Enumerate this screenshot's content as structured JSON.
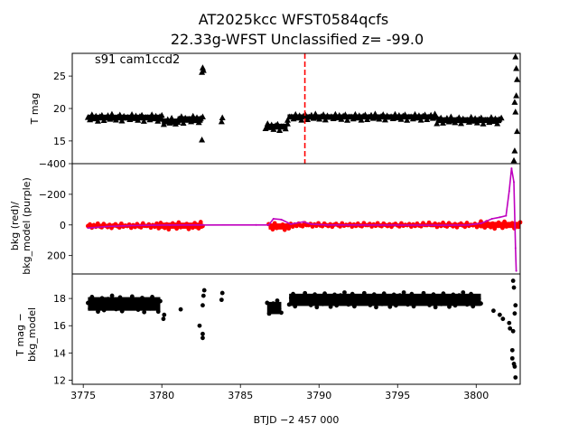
{
  "title": {
    "line1": "AT2025kcc  WFST0584qcfs",
    "line2": "22.33g-WFST Unclassified z= -99.0"
  },
  "annotation": "s91 cam1ccd2",
  "chart_data": [
    {
      "type": "scatter",
      "panel": "top",
      "ylabel": "T mag",
      "ylim": [
        28.5,
        11.5
      ],
      "y_inverted": true,
      "xlim": [
        3774.3,
        3802.8
      ],
      "yticks": [
        15,
        20,
        25
      ],
      "marker": "triangle",
      "color": "#000000",
      "vline": {
        "x": 3789.1,
        "color": "#ff0000",
        "style": "dashed"
      },
      "segments": [
        {
          "x_start": 3775.3,
          "x_end": 3780.0,
          "y_center": 18.6,
          "y_spread": 0.9
        },
        {
          "x_start": 3780.0,
          "x_end": 3781.0,
          "y_center": 18.0,
          "y_spread": 0.9
        },
        {
          "x_start": 3781.0,
          "x_end": 3782.6,
          "y_center": 18.3,
          "y_spread": 1.0
        },
        {
          "x_start": 3786.6,
          "x_end": 3788.0,
          "y_center": 17.2,
          "y_spread": 0.9
        },
        {
          "x_start": 3788.0,
          "x_end": 3797.5,
          "y_center": 18.7,
          "y_spread": 0.8
        },
        {
          "x_start": 3797.5,
          "x_end": 3801.6,
          "y_center": 18.2,
          "y_spread": 0.9
        }
      ],
      "points": [
        {
          "x": 3782.55,
          "y": 15.2
        },
        {
          "x": 3782.55,
          "y": 25.6
        },
        {
          "x": 3782.6,
          "y": 26.3
        },
        {
          "x": 3782.65,
          "y": 25.9
        },
        {
          "x": 3783.8,
          "y": 18.0
        },
        {
          "x": 3783.85,
          "y": 18.6
        },
        {
          "x": 3802.4,
          "y": 12.0
        },
        {
          "x": 3802.45,
          "y": 13.5
        },
        {
          "x": 3802.5,
          "y": 19.5
        },
        {
          "x": 3802.55,
          "y": 22.0
        },
        {
          "x": 3802.6,
          "y": 24.5
        },
        {
          "x": 3802.55,
          "y": 26.2
        },
        {
          "x": 3802.5,
          "y": 28.0
        },
        {
          "x": 3802.45,
          "y": 21.0
        },
        {
          "x": 3802.6,
          "y": 16.5
        }
      ]
    },
    {
      "type": "line",
      "panel": "middle",
      "ylabel": "bkg (red)/ bkg_model (purple)",
      "ylim": [
        -400,
        320
      ],
      "xlim": [
        3774.3,
        3802.8
      ],
      "yticks": [
        -400,
        -200,
        0,
        200
      ],
      "series": [
        {
          "color": "#ff0000",
          "marker": "dot",
          "segments": [
            {
              "x_start": 3775.3,
              "x_end": 3779.8,
              "y_center": 5,
              "y_spread": 25
            },
            {
              "x_start": 3779.8,
              "x_end": 3782.6,
              "y_center": 5,
              "y_spread": 40
            },
            {
              "x_start": 3786.8,
              "x_end": 3788.2,
              "y_center": 10,
              "y_spread": 40
            },
            {
              "x_start": 3788.2,
              "x_end": 3797.0,
              "y_center": 0,
              "y_spread": 20
            },
            {
              "x_start": 3797.0,
              "x_end": 3800.3,
              "y_center": 0,
              "y_spread": 25
            },
            {
              "x_start": 3800.3,
              "x_end": 3802.8,
              "y_center": 0,
              "y_spread": 40
            }
          ]
        },
        {
          "color": "#bf00bf",
          "marker": "line",
          "points": [
            [
              3775.3,
              20
            ],
            [
              3776.5,
              10
            ],
            [
              3778.0,
              4
            ],
            [
              3779.5,
              2
            ],
            [
              3780.5,
              1
            ],
            [
              3786.0,
              0
            ],
            [
              3786.8,
              0
            ],
            [
              3787.1,
              -40
            ],
            [
              3787.6,
              -35
            ],
            [
              3788.2,
              -5
            ],
            [
              3789.0,
              -20
            ],
            [
              3789.5,
              -5
            ],
            [
              3790.5,
              0
            ],
            [
              3798.0,
              2
            ],
            [
              3799.5,
              0
            ],
            [
              3800.3,
              -10
            ],
            [
              3801.0,
              -40
            ],
            [
              3801.5,
              -50
            ],
            [
              3801.9,
              -60
            ],
            [
              3802.1,
              -220
            ],
            [
              3802.25,
              -370
            ],
            [
              3802.4,
              -280
            ],
            [
              3802.5,
              150
            ],
            [
              3802.55,
              300
            ]
          ]
        }
      ]
    },
    {
      "type": "scatter",
      "panel": "bottom",
      "ylabel": "T mag − bkg_model",
      "xlabel": "BTJD −2 457 000",
      "ylim": [
        19.8,
        11.7
      ],
      "y_inverted": true,
      "xlim": [
        3774.3,
        3802.8
      ],
      "xticks": [
        3775,
        3780,
        3785,
        3790,
        3795,
        3800
      ],
      "yticks": [
        12,
        14,
        16,
        18
      ],
      "color": "#000000",
      "marker": "dot",
      "segments": [
        {
          "x_start": 3775.3,
          "x_end": 3779.9,
          "y_center": 17.6,
          "y_spread": 1.0
        },
        {
          "x_start": 3786.7,
          "x_end": 3787.6,
          "y_center": 17.3,
          "y_spread": 0.9
        },
        {
          "x_start": 3788.1,
          "x_end": 3800.3,
          "y_center": 17.9,
          "y_spread": 0.9
        }
      ],
      "points": [
        {
          "x": 3780.1,
          "y": 16.5
        },
        {
          "x": 3780.15,
          "y": 16.8
        },
        {
          "x": 3781.2,
          "y": 17.2
        },
        {
          "x": 3782.4,
          "y": 16.0
        },
        {
          "x": 3782.6,
          "y": 15.1
        },
        {
          "x": 3782.6,
          "y": 15.4
        },
        {
          "x": 3782.6,
          "y": 17.5
        },
        {
          "x": 3782.65,
          "y": 18.2
        },
        {
          "x": 3782.7,
          "y": 18.6
        },
        {
          "x": 3783.8,
          "y": 17.9
        },
        {
          "x": 3783.85,
          "y": 18.4
        },
        {
          "x": 3801.1,
          "y": 17.1
        },
        {
          "x": 3801.5,
          "y": 16.8
        },
        {
          "x": 3801.7,
          "y": 16.5
        },
        {
          "x": 3802.1,
          "y": 16.2
        },
        {
          "x": 3802.15,
          "y": 15.8
        },
        {
          "x": 3802.3,
          "y": 13.6
        },
        {
          "x": 3802.3,
          "y": 14.2
        },
        {
          "x": 3802.35,
          "y": 15.6
        },
        {
          "x": 3802.4,
          "y": 13.2
        },
        {
          "x": 3802.45,
          "y": 13.0
        },
        {
          "x": 3802.5,
          "y": 12.2
        },
        {
          "x": 3802.45,
          "y": 16.9
        },
        {
          "x": 3802.5,
          "y": 17.5
        },
        {
          "x": 3802.35,
          "y": 19.3
        },
        {
          "x": 3802.4,
          "y": 18.8
        }
      ]
    }
  ]
}
